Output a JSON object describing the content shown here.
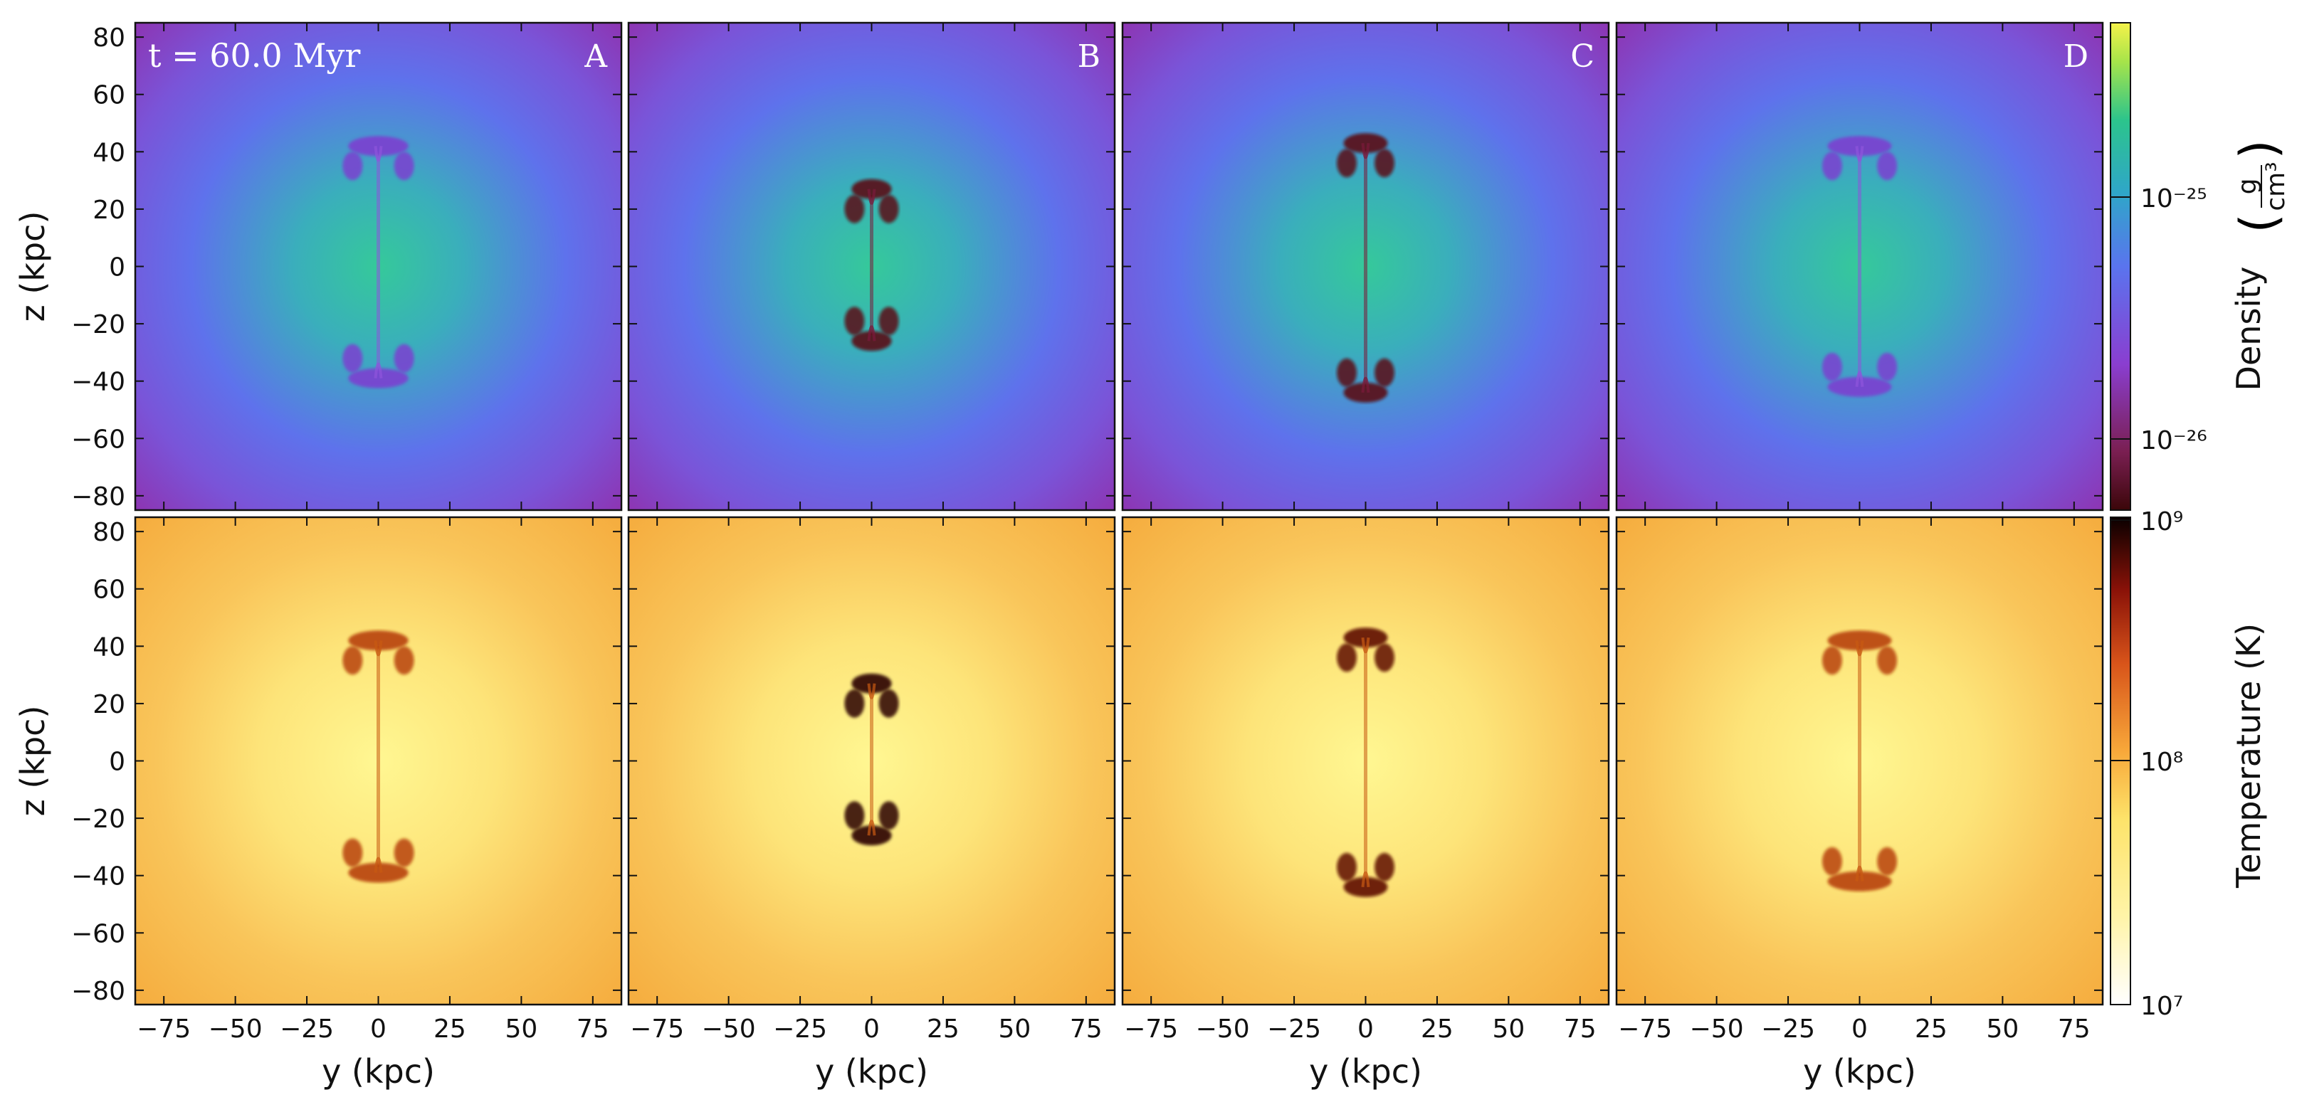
{
  "chart_data": {
    "type": "heatmap",
    "time_label": "t = 60.0 Myr",
    "panels": [
      "A",
      "B",
      "C",
      "D"
    ],
    "x_axis": {
      "label": "y  (kpc)",
      "ticks": [
        -75,
        -50,
        -25,
        0,
        25,
        50,
        75
      ],
      "tick_labels": [
        "−75",
        "−50",
        "−25",
        "0",
        "25",
        "50",
        "75"
      ],
      "range": [
        -85,
        85
      ]
    },
    "y_axis": {
      "label": "z  (kpc)",
      "ticks": [
        80,
        60,
        40,
        20,
        0,
        -20,
        -40,
        -60,
        -80
      ],
      "tick_labels": [
        "80",
        "60",
        "40",
        "20",
        "0",
        "−20",
        "−40",
        "−60",
        "−80"
      ],
      "range": [
        -85,
        85
      ]
    },
    "rows": [
      {
        "quantity": "Density",
        "colorbar_label": "Density",
        "colorbar_unit_numerator": "g",
        "colorbar_unit_denominator": "cm³",
        "colorbar_ticks": [
          {
            "label": "10⁻²⁵",
            "value": 1e-25
          },
          {
            "label": "10⁻²⁶",
            "value": 1e-26
          }
        ],
        "colorbar_top_label": "",
        "log_scale": true
      },
      {
        "quantity": "Temperature",
        "colorbar_label": "Temperature",
        "colorbar_unit": "(K)",
        "colorbar_ticks": [
          {
            "label": "10⁹",
            "value": 1000000000.0
          },
          {
            "label": "10⁸",
            "value": 100000000.0
          },
          {
            "label": "10⁷",
            "value": 10000000.0
          }
        ],
        "log_scale": true
      }
    ],
    "colors": {
      "density_background_edge": "#8a3fc4",
      "density_background_mid": "#5b72e8",
      "density_center": "#2fbf9e",
      "density_low": "#5a0f12",
      "temperature_background_edge": "#f7b443",
      "temperature_background_mid": "#fbdc6a",
      "temperature_center": "#fff38a",
      "temperature_high": "#3a0404"
    }
  }
}
